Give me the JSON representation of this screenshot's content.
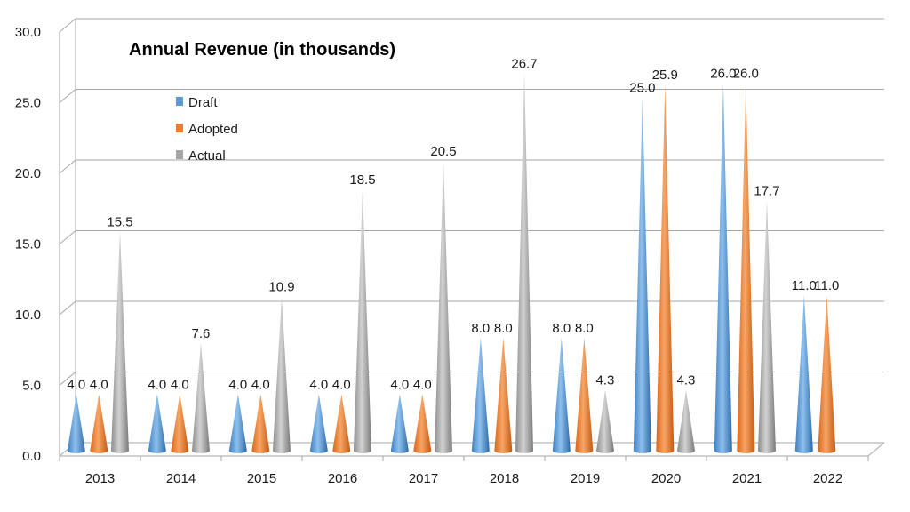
{
  "chart_data": {
    "type": "bar",
    "style": "3d-cone",
    "title": "Annual Revenue (in thousands)",
    "xlabel": "",
    "ylabel": "",
    "categories": [
      "2013",
      "2014",
      "2015",
      "2016",
      "2017",
      "2018",
      "2019",
      "2020",
      "2021",
      "2022"
    ],
    "series": [
      {
        "name": "Draft",
        "color": "#5b9bd5",
        "values": [
          4.0,
          4.0,
          4.0,
          4.0,
          4.0,
          8.0,
          8.0,
          25.0,
          26.0,
          11.0
        ]
      },
      {
        "name": "Adopted",
        "color": "#ed7d31",
        "values": [
          4.0,
          4.0,
          4.0,
          4.0,
          4.0,
          8.0,
          8.0,
          25.9,
          26.0,
          11.0
        ]
      },
      {
        "name": "Actual",
        "color": "#a5a5a5",
        "values": [
          15.5,
          7.6,
          10.9,
          18.5,
          20.5,
          26.7,
          4.3,
          4.3,
          17.7,
          null
        ]
      }
    ],
    "ylim": [
      0,
      30
    ],
    "yticks": [
      "0.0",
      "5.0",
      "10.0",
      "15.0",
      "20.0",
      "25.0",
      "30.0"
    ],
    "grid": true,
    "legend_position": "top-left",
    "data_labels": true
  }
}
